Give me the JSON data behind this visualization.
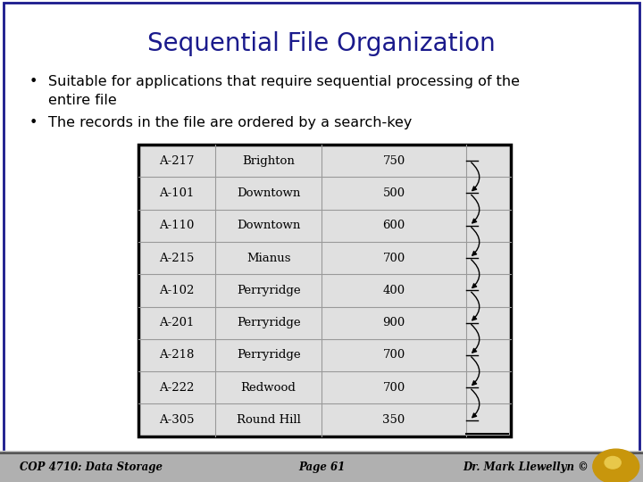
{
  "title": "Sequential File Organization",
  "title_color": "#1a1a8c",
  "title_fontsize": 20,
  "bullet1_line1": "Suitable for applications that require sequential processing of the",
  "bullet1_line2": "entire file",
  "bullet2": "The records in the file are ordered by a search-key",
  "table_data": [
    [
      "A-217",
      "Brighton",
      "750"
    ],
    [
      "A-101",
      "Downtown",
      "500"
    ],
    [
      "A-110",
      "Downtown",
      "600"
    ],
    [
      "A-215",
      "Mianus",
      "700"
    ],
    [
      "A-102",
      "Perryridge",
      "400"
    ],
    [
      "A-201",
      "Perryridge",
      "900"
    ],
    [
      "A-218",
      "Perryridge",
      "700"
    ],
    [
      "A-222",
      "Redwood",
      "700"
    ],
    [
      "A-305",
      "Round Hill",
      "350"
    ]
  ],
  "bg_color": "#ffffff",
  "footer_bg_top": "#c8c8c8",
  "footer_bg_bottom": "#888888",
  "footer_text_left": "COP 4710: Data Storage",
  "footer_text_center": "Page 61",
  "footer_text_right": "Dr. Mark Llewellyn ©",
  "table_bg": "#e0e0e0",
  "table_border_color": "#000000",
  "table_line_color": "#999999",
  "border_color": "#1a1a8c"
}
